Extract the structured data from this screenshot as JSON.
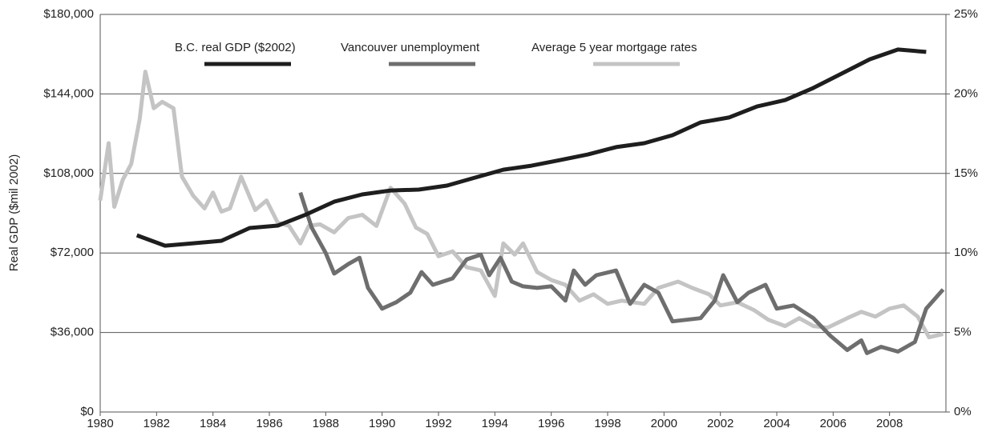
{
  "chart_data": {
    "type": "line",
    "y_label": "Real GDP ($mil 2002)",
    "xlim": [
      1980,
      2010
    ],
    "xticks": [
      1980,
      1982,
      1984,
      1986,
      1988,
      1990,
      1992,
      1994,
      1996,
      1998,
      2000,
      2002,
      2004,
      2006,
      2008
    ],
    "ylim": [
      0,
      180000
    ],
    "yticks": [
      {
        "value": 0,
        "label": "$0"
      },
      {
        "value": 36000,
        "label": "$36,000"
      },
      {
        "value": 72000,
        "label": "$72,000"
      },
      {
        "value": 108000,
        "label": "$108,000"
      },
      {
        "value": 144000,
        "label": "$144,000"
      },
      {
        "value": 180000,
        "label": "$180,000"
      }
    ],
    "y2lim": [
      0,
      25
    ],
    "y2ticks": [
      {
        "value": 0,
        "label": "0%"
      },
      {
        "value": 5,
        "label": "5%"
      },
      {
        "value": 10,
        "label": "10%"
      },
      {
        "value": 15,
        "label": "15%"
      },
      {
        "value": 20,
        "label": "20%"
      },
      {
        "value": 25,
        "label": "25%"
      }
    ],
    "grid": true,
    "legend": "top",
    "series": [
      {
        "name": "B.C. real GDP ($2002)",
        "color": "#1e1e1e",
        "axis": "y",
        "x": [
          1981.3,
          1982.3,
          1983.3,
          1984.3,
          1985.3,
          1986.3,
          1987.3,
          1988.3,
          1989.3,
          1990.3,
          1991.3,
          1992.3,
          1993.3,
          1994.3,
          1995.3,
          1996.3,
          1997.3,
          1998.3,
          1999.3,
          2000.3,
          2001.3,
          2002.3,
          2003.3,
          2004.3,
          2005.3,
          2006.3,
          2007.3,
          2008.3,
          2009.3
        ],
        "values": [
          80000,
          75300,
          76400,
          77500,
          83300,
          84400,
          89400,
          95200,
          98500,
          100300,
          100700,
          102500,
          106100,
          109700,
          111500,
          114000,
          116600,
          119900,
          121700,
          125300,
          131100,
          133300,
          138300,
          141200,
          146700,
          153200,
          159700,
          164100,
          163000
        ]
      },
      {
        "name": "Vancouver unemployment",
        "color": "#6e6e6e",
        "axis": "y2",
        "x": [
          1987.1,
          1987.5,
          1988,
          1988.3,
          1988.8,
          1989.2,
          1989.5,
          1990,
          1990.5,
          1991,
          1991.4,
          1991.8,
          1992.5,
          1993,
          1993.5,
          1993.8,
          1994.2,
          1994.6,
          1995,
          1995.5,
          1996,
          1996.5,
          1996.8,
          1997.2,
          1997.6,
          1998.3,
          1998.8,
          1999.3,
          1999.8,
          2000.3,
          2000.8,
          2001.3,
          2001.8,
          2002.1,
          2002.6,
          2003,
          2003.6,
          2004,
          2004.6,
          2005.3,
          2005.9,
          2006.5,
          2007,
          2007.2,
          2007.7,
          2008.3,
          2008.9,
          2009.3,
          2009.9
        ],
        "values": [
          13.8,
          11.6,
          10,
          8.7,
          9.3,
          9.7,
          7.8,
          6.5,
          6.9,
          7.5,
          8.8,
          8.0,
          8.4,
          9.6,
          9.9,
          8.6,
          9.7,
          8.2,
          7.9,
          7.8,
          7.9,
          7.0,
          8.9,
          8.0,
          8.6,
          8.9,
          6.8,
          8.0,
          7.5,
          5.7,
          5.8,
          5.9,
          7.0,
          8.6,
          6.9,
          7.5,
          8.0,
          6.5,
          6.7,
          5.9,
          4.8,
          3.9,
          4.5,
          3.7,
          4.1,
          3.8,
          4.4,
          6.5,
          7.7
        ]
      },
      {
        "name": "Average 5 year mortgage rates",
        "color": "#c4c4c4",
        "axis": "y2",
        "x": [
          1980,
          1980.3,
          1980.5,
          1980.8,
          1981.1,
          1981.4,
          1981.6,
          1981.9,
          1982.2,
          1982.6,
          1982.9,
          1983.3,
          1983.7,
          1984,
          1984.3,
          1984.6,
          1985,
          1985.5,
          1985.9,
          1986.3,
          1986.7,
          1987.1,
          1987.4,
          1987.8,
          1988.3,
          1988.8,
          1989.3,
          1989.8,
          1990.3,
          1990.8,
          1991.2,
          1991.6,
          1992,
          1992.5,
          1993,
          1993.5,
          1994,
          1994.3,
          1994.7,
          1995,
          1995.5,
          1996,
          1996.5,
          1997,
          1997.5,
          1998,
          1998.5,
          1999.3,
          1999.8,
          2000.5,
          2001,
          2001.6,
          2002,
          2002.6,
          2003.2,
          2003.7,
          2004.3,
          2004.8,
          2005.3,
          2005.8,
          2006.5,
          2007,
          2007.5,
          2008,
          2008.5,
          2009,
          2009.4,
          2009.9
        ],
        "values": [
          13.3,
          16.9,
          12.9,
          14.6,
          15.6,
          18.4,
          21.4,
          19.1,
          19.5,
          19.1,
          14.8,
          13.6,
          12.8,
          13.8,
          12.6,
          12.8,
          14.8,
          12.7,
          13.3,
          11.9,
          11.7,
          10.6,
          11.7,
          11.8,
          11.3,
          12.2,
          12.4,
          11.7,
          14.1,
          13.1,
          11.6,
          11.2,
          9.8,
          10.1,
          9.1,
          8.9,
          7.3,
          10.6,
          9.9,
          10.6,
          8.8,
          8.3,
          8.0,
          7.0,
          7.4,
          6.8,
          7.0,
          6.8,
          7.8,
          8.2,
          7.8,
          7.4,
          6.7,
          6.9,
          6.4,
          5.8,
          5.4,
          5.9,
          5.4,
          5.3,
          5.9,
          6.3,
          6.0,
          6.5,
          6.7,
          6.0,
          4.7,
          4.9
        ]
      }
    ]
  }
}
